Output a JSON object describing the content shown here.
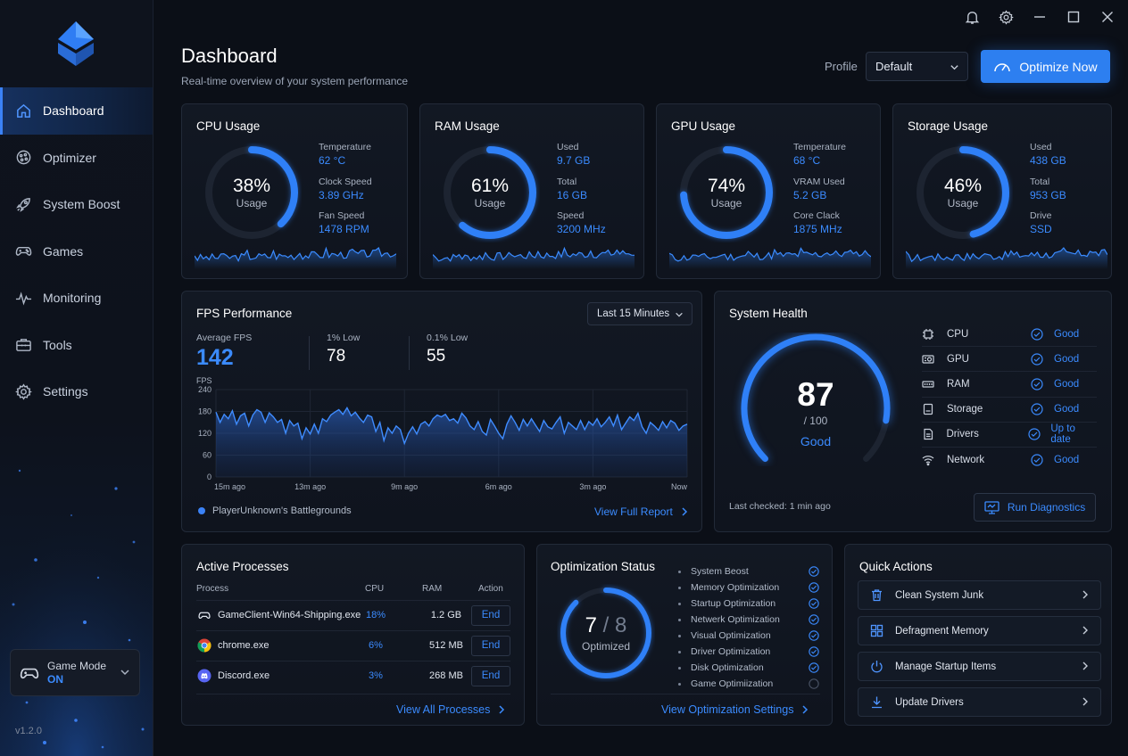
{
  "sidebar": {
    "items": [
      {
        "label": "Dashboard",
        "icon": "home-icon",
        "active": true
      },
      {
        "label": "Optimizer",
        "icon": "optimizer-icon"
      },
      {
        "label": "System Boost",
        "icon": "rocket-icon"
      },
      {
        "label": "Games",
        "icon": "gamepad-icon"
      },
      {
        "label": "Monitoring",
        "icon": "pulse-icon"
      },
      {
        "label": "Tools",
        "icon": "toolbox-icon"
      },
      {
        "label": "Settings",
        "icon": "gear-icon"
      }
    ],
    "game_mode": {
      "label": "Game Mode",
      "value": "ON"
    },
    "version": "v1.2.0"
  },
  "header": {
    "title": "Dashboard",
    "subtitle": "Real-time overview of your system performance",
    "profile_label": "Profile",
    "profile_value": "Default",
    "optimize_label": "Optimize Now"
  },
  "metrics": {
    "cpu": {
      "title": "CPU Usage",
      "percent": "38%",
      "fraction": 0.38,
      "sub": "Usage",
      "stats": [
        {
          "label": "Temperature",
          "value": "62 °C"
        },
        {
          "label": "Clock Speed",
          "value": "3.89 GHz"
        },
        {
          "label": "Fan Speed",
          "value": "1478 RPM"
        }
      ]
    },
    "ram": {
      "title": "RAM Usage",
      "percent": "61%",
      "fraction": 0.61,
      "sub": "Usage",
      "stats": [
        {
          "label": "Used",
          "value": "9.7 GB"
        },
        {
          "label": "Total",
          "value": "16 GB"
        },
        {
          "label": "Speed",
          "value": "3200 MHz"
        }
      ]
    },
    "gpu": {
      "title": "GPU Usage",
      "percent": "74%",
      "fraction": 0.74,
      "sub": "Usage",
      "stats": [
        {
          "label": "Temperature",
          "value": "68 °C"
        },
        {
          "label": "VRAM Used",
          "value": "5.2 GB"
        },
        {
          "label": "Core Clack",
          "value": "1875 MHz"
        }
      ]
    },
    "storage": {
      "title": "Storage Usage",
      "percent": "46%",
      "fraction": 0.46,
      "sub": "Usage",
      "stats": [
        {
          "label": "Used",
          "value": "438 GB"
        },
        {
          "label": "Total",
          "value": "953 GB"
        },
        {
          "label": "Drive",
          "value": "SSD"
        }
      ]
    }
  },
  "fps": {
    "title": "FPS Performance",
    "range": "Last 15 Minutes",
    "avg_label": "Average FPS",
    "avg_value": "142",
    "low1_label": "1% Low",
    "low1_value": "78",
    "low01_label": "0.1% Low",
    "low01_value": "55",
    "game": "PlayerUnknown's Battlegrounds",
    "link": "View Full Report"
  },
  "chart_data": {
    "type": "area",
    "ylabel": "FPS",
    "ylim": [
      0,
      240
    ],
    "yticks": [
      "0",
      "60",
      "120",
      "180",
      "240"
    ],
    "xticks": [
      "15m ago",
      "13m ago",
      "9m ago",
      "6m ago",
      "3m ago",
      "Now"
    ],
    "series": [
      {
        "values": [
          178,
          150,
          172,
          160,
          182,
          145,
          168,
          175,
          140,
          170,
          185,
          178,
          150,
          176,
          165,
          150,
          158,
          120,
          155,
          140,
          148,
          105,
          135,
          118,
          145,
          120,
          160,
          152,
          170,
          178,
          185,
          172,
          190,
          168,
          178,
          162,
          150,
          170,
          165,
          125,
          150,
          100,
          135,
          120,
          140,
          130,
          92,
          120,
          138,
          118,
          145,
          152,
          140,
          160,
          170,
          165,
          172,
          155,
          160,
          148,
          175,
          162,
          140,
          130,
          152,
          125,
          115,
          158,
          140,
          120,
          105,
          145,
          168,
          150,
          128,
          158,
          140,
          160,
          142,
          125,
          155,
          138,
          132,
          150,
          165,
          120,
          150,
          140,
          130,
          155,
          130,
          152,
          142,
          160,
          138,
          150,
          165,
          140,
          170,
          130,
          148,
          165,
          155,
          175,
          138,
          120,
          150,
          140,
          128,
          152,
          135,
          155,
          148,
          128,
          140,
          145
        ]
      }
    ]
  },
  "health": {
    "title": "System Health",
    "score": "87",
    "score_fraction": 0.87,
    "max": "/ 100",
    "status": "Good",
    "items": [
      {
        "name": "CPU",
        "status": "Good",
        "icon": "cpu-icon"
      },
      {
        "name": "GPU",
        "status": "Good",
        "icon": "gpu-icon"
      },
      {
        "name": "RAM",
        "status": "Good",
        "icon": "ram-icon"
      },
      {
        "name": "Storage",
        "status": "Good",
        "icon": "storage-icon"
      },
      {
        "name": "Drivers",
        "status": "Up to date",
        "icon": "drivers-icon"
      },
      {
        "name": "Network",
        "status": "Good",
        "icon": "wifi-icon"
      }
    ],
    "last_checked": "Last checked: 1 min ago",
    "diag_label": "Run Diagnostics"
  },
  "processes": {
    "title": "Active Processes",
    "headers": {
      "process": "Process",
      "cpu": "CPU",
      "ram": "RAM",
      "action": "Action"
    },
    "rows": [
      {
        "name": "GameClient-Win64-Shipping.exe",
        "cpu": "18%",
        "ram": "1.2 GB",
        "action": "End",
        "icon": "gamepad-icon"
      },
      {
        "name": "chrome.exe",
        "cpu": "6%",
        "ram": "512 MB",
        "action": "End",
        "icon": "chrome-icon"
      },
      {
        "name": "Discord.exe",
        "cpu": "3%",
        "ram": "268 MB",
        "action": "End",
        "icon": "discord-icon"
      }
    ],
    "link": "View All Processes"
  },
  "optimization": {
    "title": "Optimization Status",
    "done": "7",
    "total": "8",
    "fraction": 0.875,
    "label": "Optimized",
    "items": [
      {
        "name": "System Beost",
        "done": true
      },
      {
        "name": "Memory Optimization",
        "done": true
      },
      {
        "name": "Startup Optimization",
        "done": true
      },
      {
        "name": "Netwerk Optimization",
        "done": true
      },
      {
        "name": "Visual Optimization",
        "done": true
      },
      {
        "name": "Driver Optimization",
        "done": true
      },
      {
        "name": "Disk Optimization",
        "done": true
      },
      {
        "name": "Game Optimiization",
        "done": false
      }
    ],
    "link": "View Optimization Settings"
  },
  "quick_actions": {
    "title": "Quick Actions",
    "items": [
      {
        "label": "Clean System Junk",
        "icon": "trash-icon"
      },
      {
        "label": "Defragment Memory",
        "icon": "grid-icon"
      },
      {
        "label": "Manage Startup Items",
        "icon": "power-icon"
      },
      {
        "label": "Update Drivers",
        "icon": "download-icon"
      }
    ]
  },
  "colors": {
    "accent": "#3b82f6",
    "accent_text": "#3b8bff",
    "background": "#0b0f17",
    "card": "#121823"
  }
}
